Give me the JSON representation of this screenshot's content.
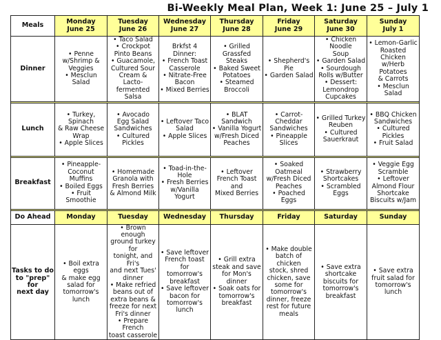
{
  "title": "Bi-Weekly Meal Plan, Week 1: June 25 – July 1",
  "colors": {
    "header_bg": "#ffff99",
    "border": "#222222"
  },
  "header": {
    "label": "Meals",
    "days": [
      "Monday\nJune 25",
      "Tuesday\nJune 26",
      "Wednesday\nJune 27",
      "Thursday\nJune 28",
      "Friday\nJune 29",
      "Saturday\nJune 30",
      "Sunday\nJuly 1"
    ]
  },
  "rows": [
    {
      "label": "Dinner",
      "cells": [
        "• Penne\nw/Shrimp &\nVeggies\n• Mesclun Salad",
        "• Taco Salad\n• Crockpot\nPinto Beans\n• Guacamole,\nCultured Sour\nCream & Lacto-\nfermented Salsa",
        "Brkfst 4 Dinner:\n• French Toast\nCasserole\n• Nitrate-Free\nBacon\n• Mixed Berries",
        "• Grilled Grassfed\nSteaks\n• Baked Sweet\nPotatoes\n• Steamed\nBroccoli",
        "• Shepherd's Pie\n• Garden Salad",
        "• Chicken Noodle\nSoup\n• Garden Salad\n• Sourdough\nRolls w/Butter\n• Dessert:\nLemondrop\nCupcakes",
        "• Lemon-Garlic\nRoasted Chicken\nw/Herb Potatoes\n& Carrots\n• Mesclun Salad"
      ]
    },
    {
      "label": "Lunch",
      "cells": [
        "• Turkey, Spinach\n& Raw Cheese\nWrap\n• Apple Slices",
        "• Avocado\nEgg Salad\nSandwiches\n• Cultured Pickles",
        "• Leftover Taco\nSalad\n• Apple Slices",
        "• BLAT Sandwich\n• Vanilla Yogurt\nw/Fresh Diced\nPeaches",
        "• Carrot-Cheddar\nSandwiches\n• Pineapple\nSlices",
        "• Grilled Turkey\nReuben\n• Cultured\nSauerkraut",
        "• BBQ Chicken\nSandwiches\n• Cultured Pickles\n• Fruit Salad"
      ]
    },
    {
      "label": "Breakfast",
      "cells": [
        "• Pineapple-\nCoconut Muffins\n• Boiled Eggs\n• Fruit Smoothie",
        "• Homemade\nGranola with\nFresh Berries\n& Almond Milk",
        "• Toad-in-the-\nHole\n• Fresh Berries\nw/Vanilla Yogurt",
        "• Leftover\nFrench Toast and\nMixed Berries",
        "• Soaked\nOatmeal\nw/Fresh Diced\nPeaches\n• Poached Eggs",
        "• Strawberry\nShortcakes\n• Scrambled\nEggs",
        "• Veggie Egg\nScramble\n• Leftover\nAlmond Flour\nShortcake\nBiscuits w/Jam"
      ]
    }
  ],
  "do_ahead": {
    "label": "Do Ahead",
    "days": [
      "Monday",
      "Tuesday",
      "Wednesday",
      "Thursday",
      "Friday",
      "Saturday",
      "Sunday"
    ],
    "tasks_label": "Tasks to do\nto \"prep\" for\nnext day",
    "tasks": [
      "• Boil extra eggs\n& make egg\nsalad for\ntomorrow's lunch",
      "• Brown enough\nground turkey for\ntonight, and Fri's\nand next Tues'\ndinner\n• Make refried\nbeans out of\nextra beans &\nfreeze for next\nFri's dinner\n• Prepare French\ntoast casserole",
      "• Save leftover\nFrench toast for\ntomorrow's\nbreakfast\n• Save leftover\nbacon for\ntomorrow's lunch",
      "• Grill extra\nsteak and save\nfor Mon's dinner\n• Soak oats for\ntomorrow's\nbreakfast",
      "• Make double\nbatch of chicken\nstock, shred\nchicken, save\nsome for\ntomorrow's\ndinner, freeze\nrest for future\nmeals",
      "• Save extra\nshortcake\nbiscuits for\ntomorrow's\nbreakfast",
      "• Save extra\nfruit salad for\ntomorrow's lunch"
    ]
  }
}
